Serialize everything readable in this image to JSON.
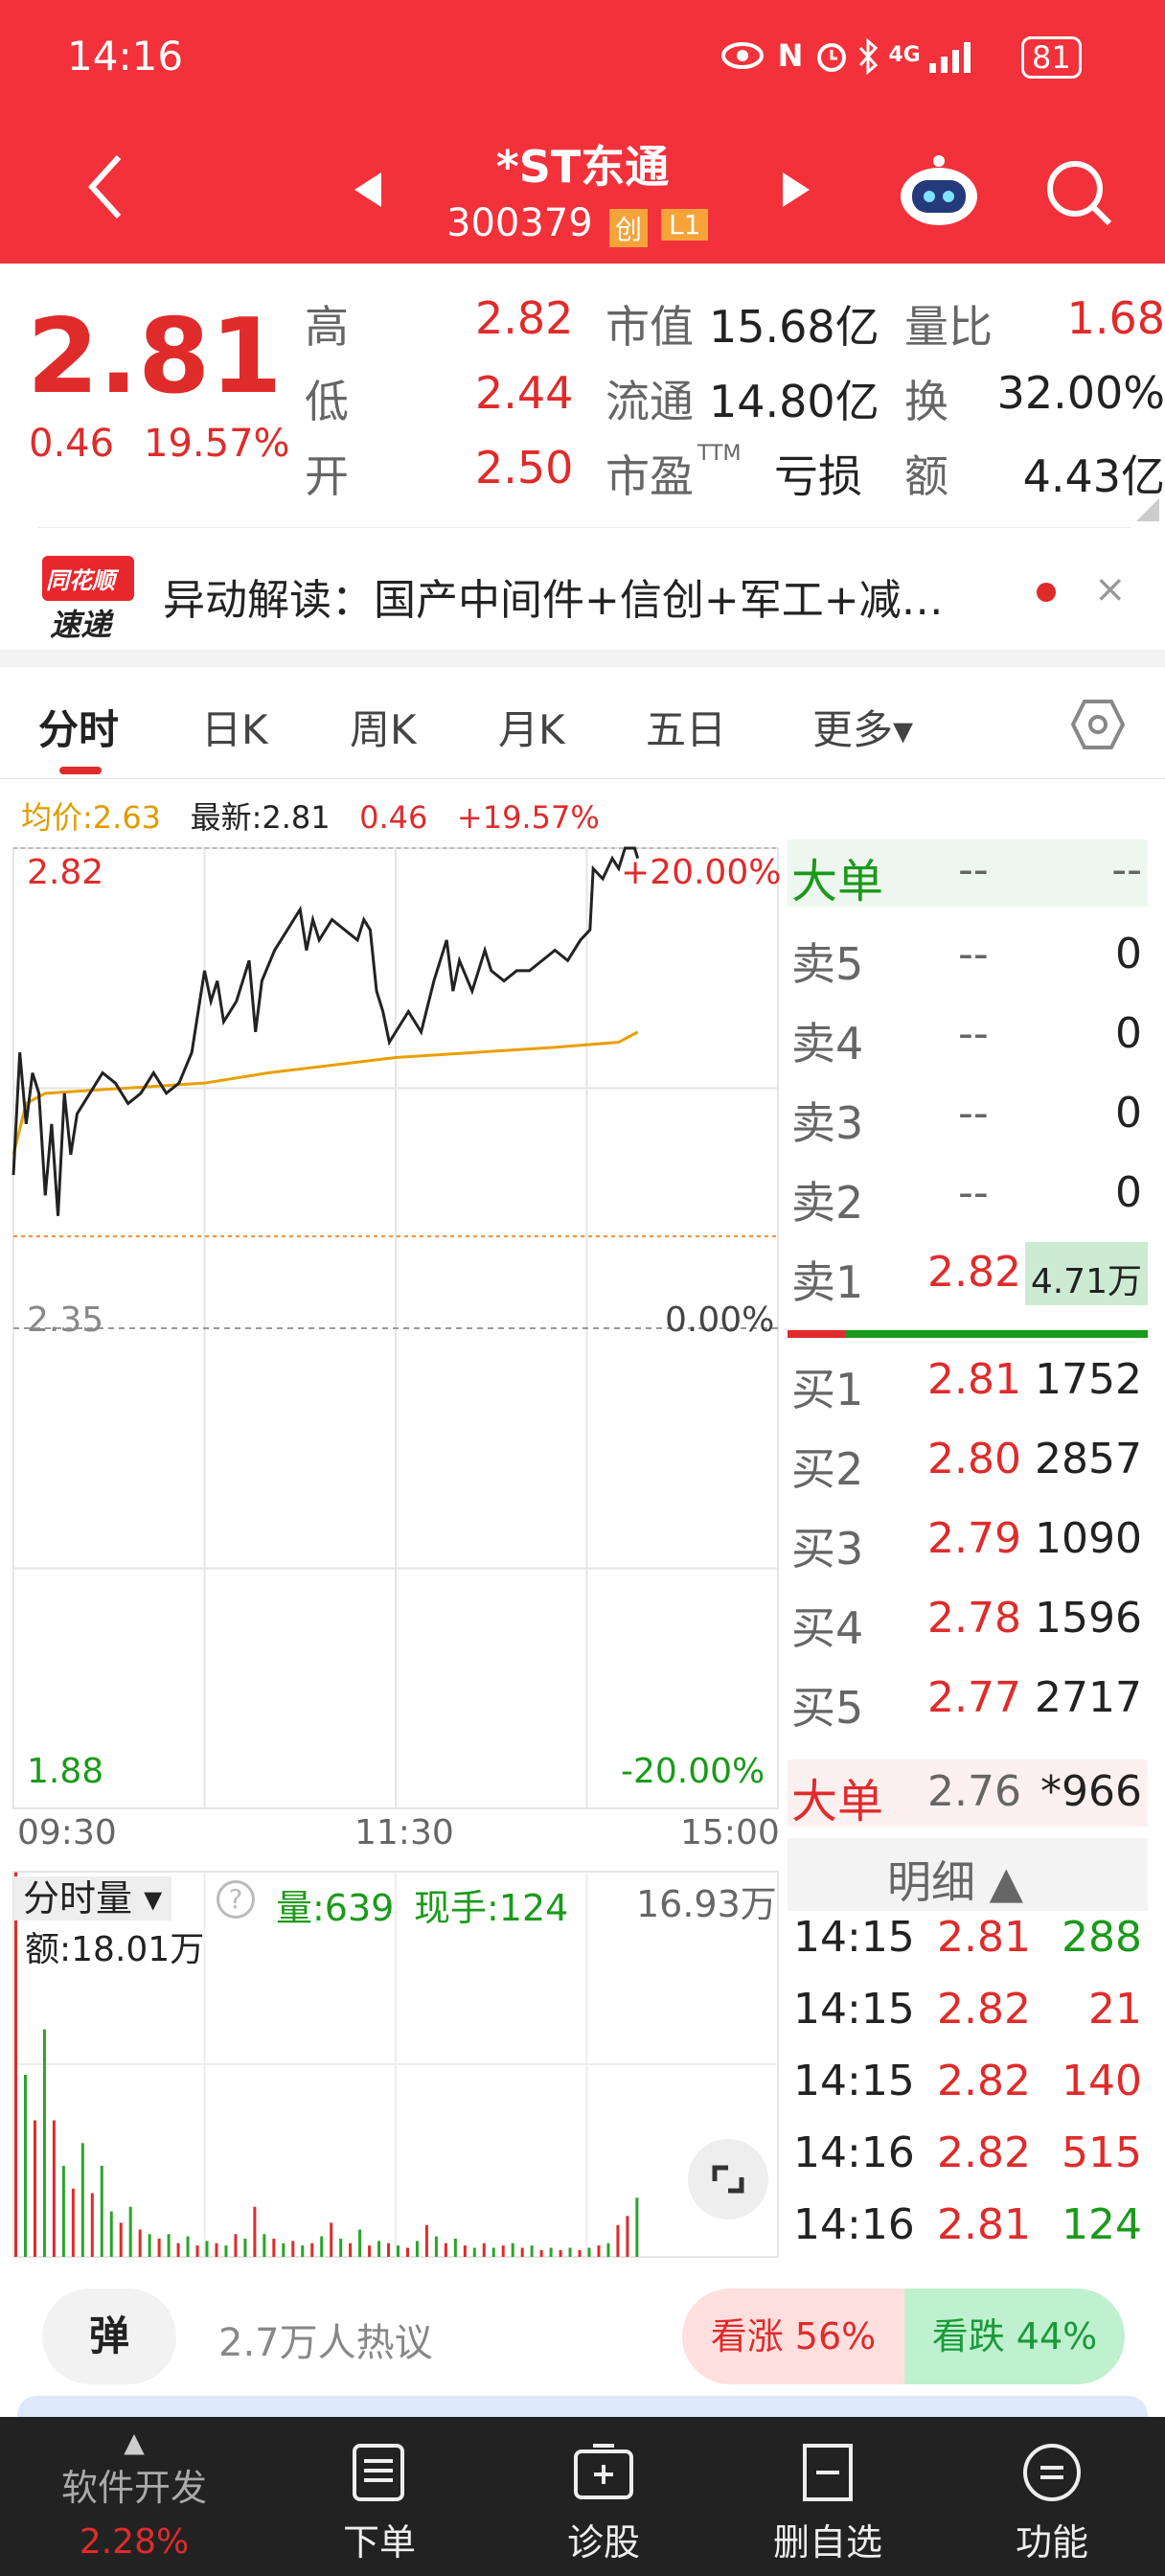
{
  "status": {
    "time": "14:16",
    "battery": "81",
    "network": "4G"
  },
  "header": {
    "name": "*ST东通",
    "code": "300379",
    "badge1": "创",
    "badge2": "L1"
  },
  "quote": {
    "price": "2.81",
    "change": "0.46",
    "pct": "19.57%",
    "rows": [
      {
        "l1": "高",
        "v1": "2.82",
        "l2": "市值",
        "v2": "15.68亿",
        "l3": "量比",
        "v3": "1.68"
      },
      {
        "l1": "低",
        "v1": "2.44",
        "l2": "流通",
        "v2": "14.80亿",
        "l3": "换",
        "v3": "32.00%"
      },
      {
        "l1": "开",
        "v1": "2.50",
        "l2": "市盈",
        "l2sup": "TTM",
        "v2": "亏损",
        "l3": "额",
        "v3": "4.43亿"
      }
    ]
  },
  "news": {
    "logo_top": "同花顺",
    "logo_bottom": "速递",
    "text": "异动解读：国产中间件+信创+军工+减…"
  },
  "tabs": [
    {
      "label": "分时"
    },
    {
      "label": "日K"
    },
    {
      "label": "周K"
    },
    {
      "label": "月K"
    },
    {
      "label": "五日"
    },
    {
      "label": "更多▾"
    }
  ],
  "info": {
    "avg": "均价:2.63",
    "latest": "最新:2.81",
    "chg": "0.46",
    "pct": "+19.57%"
  },
  "axis": {
    "top": "2.82",
    "mid": "2.35",
    "bottom": "1.88",
    "top_pct": "+20.00%",
    "mid_pct": "0.00%",
    "bottom_pct": "-20.00%",
    "t0": "09:30",
    "t1": "11:30",
    "t2": "15:00"
  },
  "chart_data": {
    "type": "line",
    "ylim": [
      1.88,
      2.82
    ],
    "prev_close": 2.35,
    "x_unit": "minutes since 09:30",
    "price": [
      [
        0,
        2.5
      ],
      [
        2,
        2.62
      ],
      [
        4,
        2.55
      ],
      [
        6,
        2.6
      ],
      [
        8,
        2.58
      ],
      [
        10,
        2.48
      ],
      [
        12,
        2.55
      ],
      [
        14,
        2.46
      ],
      [
        16,
        2.58
      ],
      [
        18,
        2.52
      ],
      [
        20,
        2.56
      ],
      [
        24,
        2.58
      ],
      [
        28,
        2.6
      ],
      [
        32,
        2.59
      ],
      [
        36,
        2.57
      ],
      [
        40,
        2.58
      ],
      [
        44,
        2.6
      ],
      [
        48,
        2.58
      ],
      [
        52,
        2.59
      ],
      [
        56,
        2.62
      ],
      [
        58,
        2.66
      ],
      [
        60,
        2.7
      ],
      [
        62,
        2.67
      ],
      [
        64,
        2.69
      ],
      [
        66,
        2.65
      ],
      [
        70,
        2.67
      ],
      [
        74,
        2.71
      ],
      [
        76,
        2.64
      ],
      [
        78,
        2.69
      ],
      [
        82,
        2.72
      ],
      [
        86,
        2.74
      ],
      [
        90,
        2.76
      ],
      [
        92,
        2.72
      ],
      [
        94,
        2.75
      ],
      [
        96,
        2.73
      ],
      [
        100,
        2.75
      ],
      [
        104,
        2.74
      ],
      [
        108,
        2.73
      ],
      [
        110,
        2.75
      ],
      [
        112,
        2.74
      ],
      [
        114,
        2.68
      ],
      [
        116,
        2.66
      ],
      [
        118,
        2.63
      ],
      [
        120,
        2.64
      ],
      [
        124,
        2.66
      ],
      [
        126,
        2.65
      ],
      [
        128,
        2.64
      ],
      [
        132,
        2.69
      ],
      [
        136,
        2.73
      ],
      [
        138,
        2.68
      ],
      [
        140,
        2.71
      ],
      [
        144,
        2.68
      ],
      [
        148,
        2.72
      ],
      [
        150,
        2.7
      ],
      [
        154,
        2.69
      ],
      [
        158,
        2.7
      ],
      [
        162,
        2.7
      ],
      [
        166,
        2.71
      ],
      [
        170,
        2.72
      ],
      [
        174,
        2.71
      ],
      [
        178,
        2.73
      ],
      [
        181,
        2.74
      ],
      [
        182,
        2.8
      ],
      [
        185,
        2.79
      ],
      [
        188,
        2.81
      ],
      [
        190,
        2.8
      ],
      [
        192,
        2.82
      ],
      [
        195,
        2.82
      ],
      [
        196,
        2.81
      ]
    ],
    "avg": [
      [
        0,
        2.52
      ],
      [
        4,
        2.57
      ],
      [
        10,
        2.58
      ],
      [
        60,
        2.59
      ],
      [
        80,
        2.6
      ],
      [
        120,
        2.615
      ],
      [
        170,
        2.625
      ],
      [
        190,
        2.63
      ],
      [
        196,
        2.64
      ]
    ],
    "volume_max_wan": 16.93,
    "volume_wan": [
      16.9,
      8,
      6,
      10,
      6,
      4,
      3,
      5,
      2.8,
      4,
      2,
      1.5,
      2.2,
      1.2,
      1,
      0.8,
      1,
      0.6,
      0.9,
      0.5,
      0.7,
      0.6,
      0.5,
      1,
      0.8,
      2.2,
      1,
      0.8,
      0.6,
      0.7,
      0.5,
      0.6,
      0.9,
      1.5,
      0.8,
      0.6,
      1.2,
      0.5,
      0.7,
      0.6,
      0.5,
      0.4,
      0.7,
      1.4,
      0.9,
      0.6,
      0.8,
      0.5,
      0.4,
      0.6,
      0.4,
      0.5,
      0.6,
      0.4,
      0.5,
      0.3,
      0.4,
      0.3,
      0.4,
      0.3,
      0.4,
      0.5,
      0.6,
      1.4,
      1.8,
      2.6
    ],
    "volume_up": [
      true,
      false,
      true,
      false,
      true,
      false,
      true,
      false,
      true,
      false,
      false,
      true,
      false,
      true,
      false,
      true,
      false,
      true,
      false,
      true,
      false,
      true,
      false,
      true,
      false,
      true,
      false,
      true,
      false,
      true,
      false,
      true,
      false,
      true,
      false,
      true,
      false,
      true,
      false,
      true,
      false,
      true,
      false,
      true,
      false,
      true,
      false,
      true,
      false,
      true,
      false,
      true,
      false,
      true,
      false,
      true,
      false,
      true,
      false,
      true,
      false,
      true,
      false,
      true,
      true,
      false
    ]
  },
  "orderbook": {
    "big_label": "大单",
    "big_v1": "--",
    "big_v2": "--",
    "sells": [
      {
        "l": "卖5",
        "p": "--",
        "v": "0"
      },
      {
        "l": "卖4",
        "p": "--",
        "v": "0"
      },
      {
        "l": "卖3",
        "p": "--",
        "v": "0"
      },
      {
        "l": "卖2",
        "p": "--",
        "v": "0"
      },
      {
        "l": "卖1",
        "p": "2.82",
        "v": "4.71万"
      }
    ],
    "buys": [
      {
        "l": "买1",
        "p": "2.81",
        "v": "1752"
      },
      {
        "l": "买2",
        "p": "2.80",
        "v": "2857"
      },
      {
        "l": "买3",
        "p": "2.79",
        "v": "1090"
      },
      {
        "l": "买4",
        "p": "2.78",
        "v": "1596"
      },
      {
        "l": "买5",
        "p": "2.77",
        "v": "2717"
      }
    ],
    "big2_label": "大单",
    "big2_p": "2.76",
    "big2_v": "*966",
    "buy_ratio": 0.16
  },
  "detail": {
    "title": "明细 ▲",
    "rows": [
      {
        "t": "14:15",
        "p": "2.81",
        "v": "288",
        "up": false
      },
      {
        "t": "14:15",
        "p": "2.82",
        "v": "21",
        "up": true
      },
      {
        "t": "14:15",
        "p": "2.82",
        "v": "140",
        "up": true
      },
      {
        "t": "14:16",
        "p": "2.82",
        "v": "515",
        "up": true
      },
      {
        "t": "14:16",
        "p": "2.81",
        "v": "124",
        "up": false
      }
    ]
  },
  "volume": {
    "label": "分时量 ▾",
    "vol": "量:639",
    "hand": "现手:124",
    "amount": "额:18.01万",
    "max": "16.93万"
  },
  "comment": {
    "danmu": "弹",
    "count": "2.7万人热议",
    "bull": "看涨 56%",
    "bear": "看跌 44%"
  },
  "nav": {
    "sector": "软件开发",
    "sector_pct": "2.28%",
    "items": [
      {
        "label": "下单"
      },
      {
        "label": "诊股"
      },
      {
        "label": "删自选"
      },
      {
        "label": "功能"
      }
    ]
  }
}
